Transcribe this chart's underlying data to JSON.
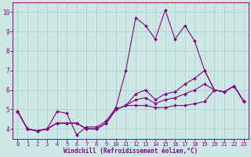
{
  "background_color": "#cce8e4",
  "line_color": "#880088",
  "grid_color": "#aacccc",
  "spine_color": "#880088",
  "xlim": [
    -0.5,
    23.5
  ],
  "ylim": [
    3.5,
    10.5
  ],
  "yticks": [
    4,
    5,
    6,
    7,
    8,
    9,
    10
  ],
  "xticks": [
    0,
    1,
    2,
    3,
    4,
    5,
    6,
    7,
    8,
    9,
    10,
    11,
    12,
    13,
    14,
    15,
    16,
    17,
    18,
    19,
    20,
    21,
    22,
    23
  ],
  "xlabel": "Windchill (Refroidissement éolien,°C)",
  "series": [
    [
      4.9,
      4.0,
      3.9,
      4.0,
      4.9,
      4.8,
      3.7,
      4.1,
      4.1,
      4.4,
      5.1,
      7.0,
      9.7,
      9.3,
      8.6,
      10.1,
      8.6,
      9.3,
      8.5,
      7.0,
      6.0,
      5.9,
      6.2,
      5.4
    ],
    [
      4.9,
      4.0,
      3.9,
      4.0,
      4.3,
      4.3,
      4.3,
      4.0,
      4.0,
      4.3,
      5.0,
      5.2,
      5.2,
      5.2,
      5.1,
      5.1,
      5.2,
      5.2,
      5.3,
      5.4,
      6.0,
      5.9,
      6.2,
      5.4
    ],
    [
      4.9,
      4.0,
      3.9,
      4.0,
      4.3,
      4.3,
      4.3,
      4.0,
      4.0,
      4.3,
      5.0,
      5.2,
      5.5,
      5.6,
      5.3,
      5.5,
      5.6,
      5.8,
      6.0,
      6.3,
      6.0,
      5.9,
      6.2,
      5.4
    ],
    [
      4.9,
      4.0,
      3.9,
      4.0,
      4.3,
      4.3,
      4.3,
      4.0,
      4.0,
      4.3,
      5.0,
      5.2,
      5.8,
      6.0,
      5.5,
      5.8,
      5.9,
      6.3,
      6.6,
      7.0,
      6.0,
      5.9,
      6.2,
      5.4
    ]
  ],
  "marker": "D",
  "markersize": 2.0,
  "linewidth": 0.8,
  "tick_fontsize": 5.0,
  "xlabel_fontsize": 5.5
}
